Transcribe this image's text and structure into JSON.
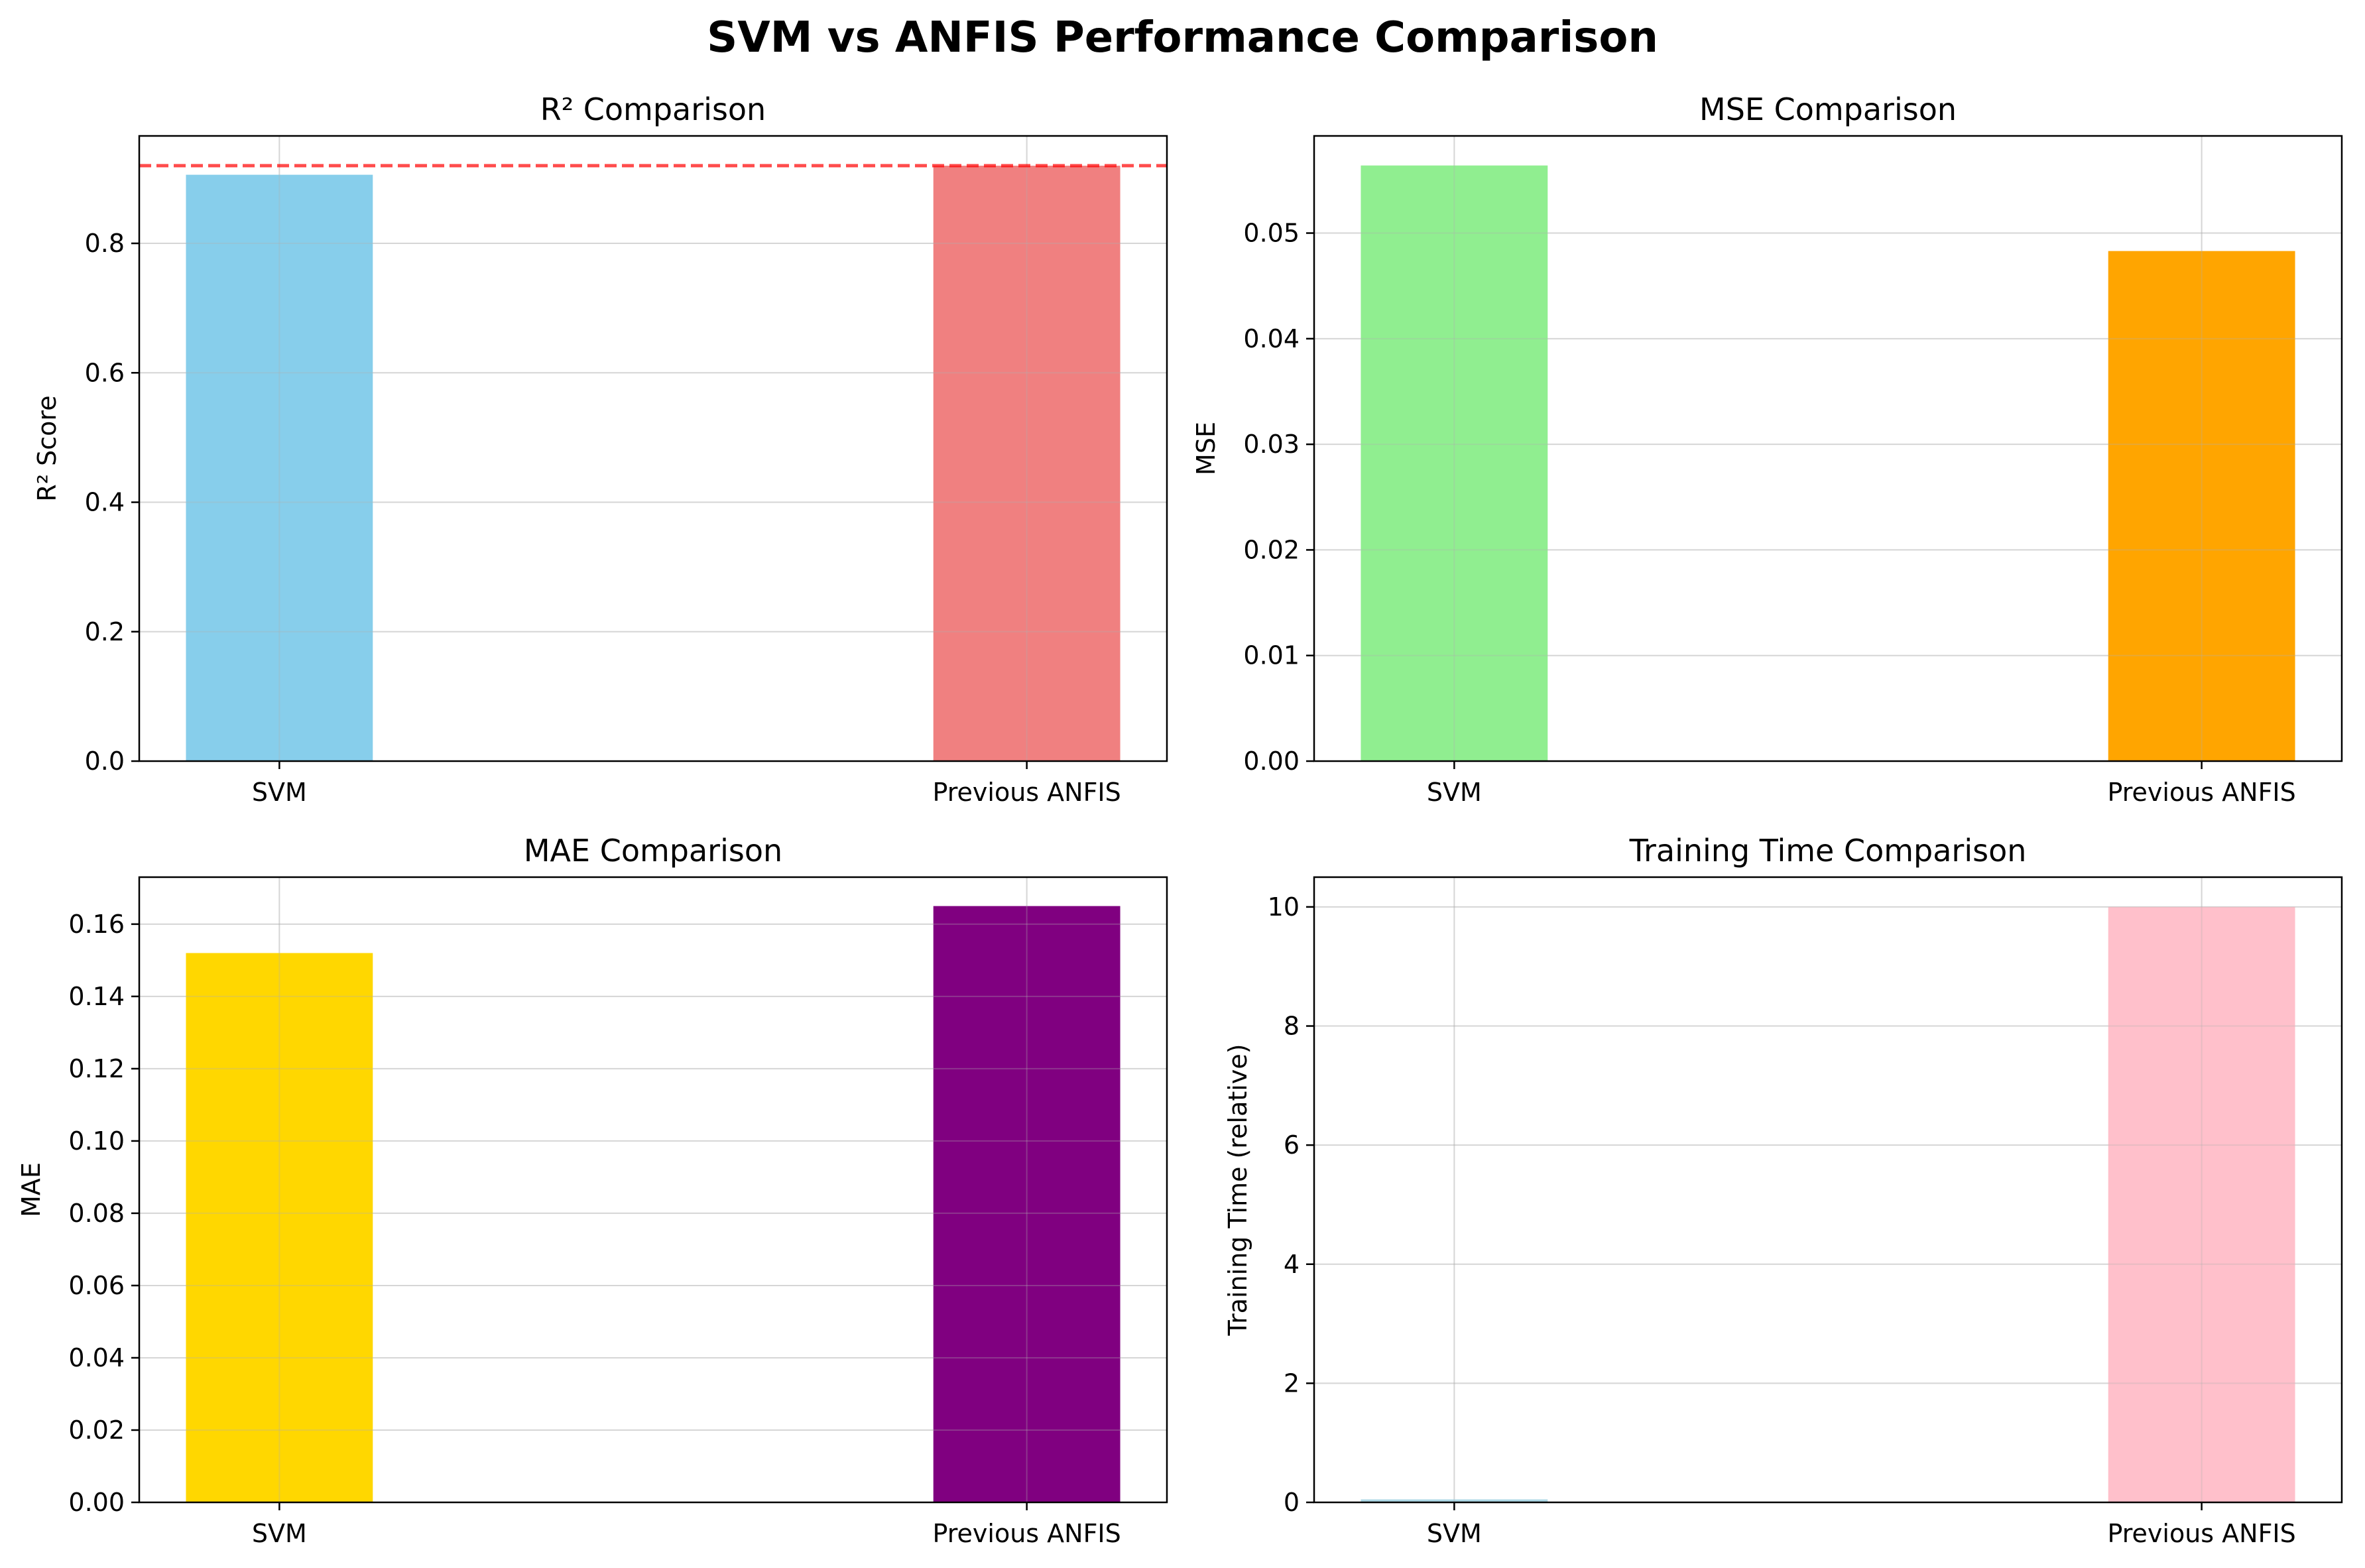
{
  "figure_title": "SVM vs ANFIS Performance Comparison",
  "chart_data": [
    {
      "type": "bar",
      "title": "R² Comparison",
      "xlabel": "",
      "ylabel": "R² Score",
      "categories": [
        "SVM",
        "Previous ANFIS"
      ],
      "values": [
        0.906,
        0.92
      ],
      "bar_colors": [
        "#87CEEB",
        "#F08080"
      ],
      "ylim": [
        0,
        0.966
      ],
      "yticks": [
        0.0,
        0.2,
        0.4,
        0.6,
        0.8
      ],
      "ytick_labels": [
        "0.0",
        "0.2",
        "0.4",
        "0.6",
        "0.8"
      ],
      "reference_line": {
        "y": 0.92,
        "color": "#FF0000",
        "style": "dashed"
      },
      "grid": true
    },
    {
      "type": "bar",
      "title": "MSE Comparison",
      "xlabel": "",
      "ylabel": "MSE",
      "categories": [
        "SVM",
        "Previous ANFIS"
      ],
      "values": [
        0.0564,
        0.0483
      ],
      "bar_colors": [
        "#90EE90",
        "#FFA500"
      ],
      "ylim": [
        0,
        0.0592
      ],
      "yticks": [
        0.0,
        0.01,
        0.02,
        0.03,
        0.04,
        0.05
      ],
      "ytick_labels": [
        "0.00",
        "0.01",
        "0.02",
        "0.03",
        "0.04",
        "0.05"
      ],
      "grid": true
    },
    {
      "type": "bar",
      "title": "MAE Comparison",
      "xlabel": "",
      "ylabel": "MAE",
      "categories": [
        "SVM",
        "Previous ANFIS"
      ],
      "values": [
        0.152,
        0.165
      ],
      "bar_colors": [
        "#FFD700",
        "#800080"
      ],
      "ylim": [
        0,
        0.173
      ],
      "yticks": [
        0.0,
        0.02,
        0.04,
        0.06,
        0.08,
        0.1,
        0.12,
        0.14,
        0.16
      ],
      "ytick_labels": [
        "0.00",
        "0.02",
        "0.04",
        "0.06",
        "0.08",
        "0.10",
        "0.12",
        "0.14",
        "0.16"
      ],
      "grid": true
    },
    {
      "type": "bar",
      "title": "Training Time Comparison",
      "xlabel": "",
      "ylabel": "Training Time (relative)",
      "categories": [
        "SVM",
        "Previous ANFIS"
      ],
      "values": [
        0.05,
        10.0
      ],
      "bar_colors": [
        "#ADD8E6",
        "#FFC0CB"
      ],
      "ylim": [
        0,
        10.5
      ],
      "yticks": [
        0,
        2,
        4,
        6,
        8,
        10
      ],
      "ytick_labels": [
        "0",
        "2",
        "4",
        "6",
        "8",
        "10"
      ],
      "grid": true
    }
  ]
}
